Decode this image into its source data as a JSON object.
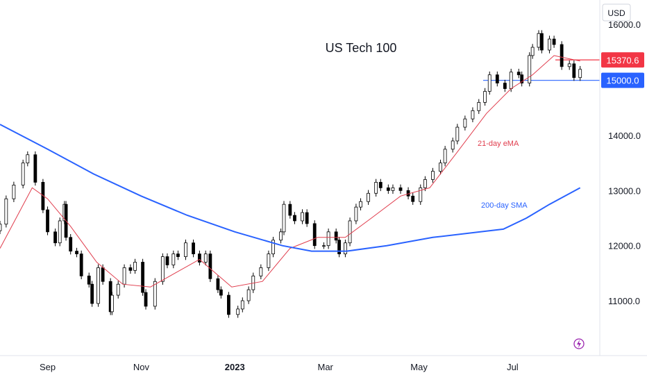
{
  "chart_data": {
    "type": "candlestick",
    "title": "US Tech 100",
    "currency": "USD",
    "y_axis": {
      "ticks": [
        11000,
        12000,
        13000,
        14000
      ],
      "tick_labels": [
        "11000.0",
        "12000.0",
        "13000.0",
        "14000.0"
      ],
      "partial_top_label": "16000.0"
    },
    "x_axis": {
      "labels": [
        {
          "label": "Sep",
          "date": "2022-09-01",
          "bold": false
        },
        {
          "label": "Nov",
          "date": "2022-11-01",
          "bold": false
        },
        {
          "label": "2023",
          "date": "2023-01-01",
          "bold": true
        },
        {
          "label": "Mar",
          "date": "2023-03-01",
          "bold": false
        },
        {
          "label": "May",
          "date": "2023-05-01",
          "bold": false
        },
        {
          "label": "Jul",
          "date": "2023-07-01",
          "bold": false
        }
      ]
    },
    "price_lines": [
      {
        "value": 15370.6,
        "label": "15370.6",
        "color": "#f23645"
      },
      {
        "value": 15000.0,
        "label": "15000.0",
        "color": "#2962ff"
      }
    ],
    "series": [
      {
        "name": "Candles",
        "up_color": "#ffffff",
        "down_color": "#000000",
        "points": [
          [
            "2022-08-01",
            12390
          ],
          [
            "2022-08-05",
            12850
          ],
          [
            "2022-08-10",
            13100
          ],
          [
            "2022-08-16",
            13500
          ],
          [
            "2022-08-19",
            13650
          ],
          [
            "2022-08-24",
            13150
          ],
          [
            "2022-08-29",
            12650
          ],
          [
            "2022-09-01",
            12250
          ],
          [
            "2022-09-06",
            12050
          ],
          [
            "2022-09-09",
            12450
          ],
          [
            "2022-09-12",
            12750
          ],
          [
            "2022-09-13",
            12150
          ],
          [
            "2022-09-16",
            11900
          ],
          [
            "2022-09-20",
            11850
          ],
          [
            "2022-09-23",
            11450
          ],
          [
            "2022-09-28",
            11300
          ],
          [
            "2022-09-30",
            10950
          ],
          [
            "2022-10-04",
            11600
          ],
          [
            "2022-10-07",
            11350
          ],
          [
            "2022-10-12",
            10800
          ],
          [
            "2022-10-13",
            11100
          ],
          [
            "2022-10-17",
            11300
          ],
          [
            "2022-10-21",
            11600
          ],
          [
            "2022-10-25",
            11550
          ],
          [
            "2022-10-28",
            11700
          ],
          [
            "2022-11-02",
            11150
          ],
          [
            "2022-11-04",
            10900
          ],
          [
            "2022-11-10",
            11350
          ],
          [
            "2022-11-15",
            11800
          ],
          [
            "2022-11-18",
            11650
          ],
          [
            "2022-11-22",
            11850
          ],
          [
            "2022-11-25",
            11800
          ],
          [
            "2022-11-30",
            12050
          ],
          [
            "2022-12-05",
            11850
          ],
          [
            "2022-12-09",
            11700
          ],
          [
            "2022-12-13",
            11850
          ],
          [
            "2022-12-16",
            11400
          ],
          [
            "2022-12-21",
            11200
          ],
          [
            "2022-12-23",
            11100
          ],
          [
            "2022-12-28",
            10750
          ],
          [
            "2023-01-03",
            10850
          ],
          [
            "2023-01-06",
            11000
          ],
          [
            "2023-01-10",
            11200
          ],
          [
            "2023-01-13",
            11450
          ],
          [
            "2023-01-18",
            11600
          ],
          [
            "2023-01-23",
            11850
          ],
          [
            "2023-01-26",
            12100
          ],
          [
            "2023-01-31",
            12250
          ],
          [
            "2023-02-02",
            12750
          ],
          [
            "2023-02-06",
            12550
          ],
          [
            "2023-02-09",
            12450
          ],
          [
            "2023-02-14",
            12600
          ],
          [
            "2023-02-17",
            12400
          ],
          [
            "2023-02-22",
            12000
          ],
          [
            "2023-02-28",
            12000
          ],
          [
            "2023-03-03",
            12250
          ],
          [
            "2023-03-08",
            12100
          ],
          [
            "2023-03-10",
            11850
          ],
          [
            "2023-03-14",
            12050
          ],
          [
            "2023-03-17",
            12450
          ],
          [
            "2023-03-21",
            12700
          ],
          [
            "2023-03-24",
            12800
          ],
          [
            "2023-03-29",
            12950
          ],
          [
            "2023-04-03",
            13150
          ],
          [
            "2023-04-06",
            13050
          ],
          [
            "2023-04-11",
            13000
          ],
          [
            "2023-04-14",
            13050
          ],
          [
            "2023-04-19",
            13000
          ],
          [
            "2023-04-24",
            12900
          ],
          [
            "2023-04-27",
            12800
          ],
          [
            "2023-05-02",
            13050
          ],
          [
            "2023-05-05",
            13200
          ],
          [
            "2023-05-10",
            13350
          ],
          [
            "2023-05-15",
            13500
          ],
          [
            "2023-05-18",
            13750
          ],
          [
            "2023-05-23",
            13900
          ],
          [
            "2023-05-26",
            14150
          ],
          [
            "2023-05-31",
            14300
          ],
          [
            "2023-06-05",
            14450
          ],
          [
            "2023-06-09",
            14600
          ],
          [
            "2023-06-13",
            14800
          ],
          [
            "2023-06-16",
            15100
          ],
          [
            "2023-06-21",
            14950
          ],
          [
            "2023-06-26",
            14850
          ],
          [
            "2023-06-30",
            15150
          ],
          [
            "2023-07-05",
            15100
          ],
          [
            "2023-07-07",
            14950
          ],
          [
            "2023-07-12",
            15450
          ],
          [
            "2023-07-14",
            15600
          ],
          [
            "2023-07-18",
            15850
          ],
          [
            "2023-07-20",
            15550
          ],
          [
            "2023-07-25",
            15750
          ],
          [
            "2023-07-28",
            15650
          ],
          [
            "2023-08-02",
            15250
          ],
          [
            "2023-08-07",
            15300
          ],
          [
            "2023-08-10",
            15050
          ],
          [
            "2023-08-14",
            15200
          ]
        ]
      },
      {
        "name": "21-day eMA",
        "color": "#e03d4d",
        "points": [
          [
            "2022-08-01",
            11950
          ],
          [
            "2022-08-22",
            13050
          ],
          [
            "2022-09-01",
            12850
          ],
          [
            "2022-09-16",
            12350
          ],
          [
            "2022-10-03",
            11700
          ],
          [
            "2022-10-20",
            11300
          ],
          [
            "2022-11-07",
            11250
          ],
          [
            "2022-11-23",
            11500
          ],
          [
            "2022-12-09",
            11750
          ],
          [
            "2022-12-30",
            11250
          ],
          [
            "2023-01-19",
            11350
          ],
          [
            "2023-02-06",
            11950
          ],
          [
            "2023-02-24",
            12150
          ],
          [
            "2023-03-14",
            12150
          ],
          [
            "2023-03-31",
            12500
          ],
          [
            "2023-04-19",
            12900
          ],
          [
            "2023-05-08",
            13050
          ],
          [
            "2023-05-26",
            13700
          ],
          [
            "2023-06-14",
            14400
          ],
          [
            "2023-06-30",
            14850
          ],
          [
            "2023-07-14",
            15100
          ],
          [
            "2023-07-28",
            15450
          ],
          [
            "2023-08-14",
            15350
          ]
        ]
      },
      {
        "name": "200-day SMA",
        "color": "#2962ff",
        "points": [
          [
            "2022-08-01",
            14200
          ],
          [
            "2022-09-01",
            13750
          ],
          [
            "2022-10-01",
            13300
          ],
          [
            "2022-11-01",
            12900
          ],
          [
            "2022-12-01",
            12550
          ],
          [
            "2023-01-01",
            12250
          ],
          [
            "2023-02-01",
            12000
          ],
          [
            "2023-02-20",
            11900
          ],
          [
            "2023-03-15",
            11900
          ],
          [
            "2023-04-10",
            12000
          ],
          [
            "2023-05-10",
            12150
          ],
          [
            "2023-06-10",
            12250
          ],
          [
            "2023-06-25",
            12300
          ],
          [
            "2023-07-10",
            12500
          ],
          [
            "2023-07-25",
            12750
          ],
          [
            "2023-08-14",
            13050
          ]
        ]
      }
    ],
    "annotations": [
      {
        "text": "21-day eMA",
        "color": "#e03d4d"
      },
      {
        "text": "200-day SMA",
        "color": "#2962ff"
      }
    ]
  }
}
